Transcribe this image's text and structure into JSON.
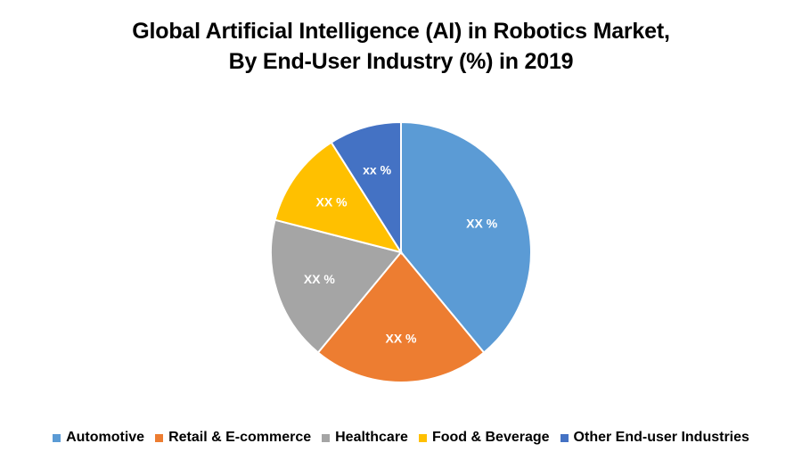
{
  "chart_data": {
    "type": "pie",
    "title_line1": "Global Artificial Intelligence (AI) in Robotics Market,",
    "title_line2": "By End-User Industry (%) in 2019",
    "slices": [
      {
        "name": "Automotive",
        "value": 39,
        "label": "XX %",
        "color": "#5B9BD5"
      },
      {
        "name": "Retail & E-commerce",
        "value": 22,
        "label": "XX %",
        "color": "#ED7D31"
      },
      {
        "name": "Healthcare",
        "value": 18,
        "label": "XX %",
        "color": "#A5A5A5"
      },
      {
        "name": "Food & Beverage",
        "value": 12,
        "label": "XX %",
        "color": "#FFC000"
      },
      {
        "name": "Other End-user Industries",
        "value": 9,
        "label": "xx %",
        "color": "#4472C4"
      }
    ],
    "start_position": "top",
    "direction": "clockwise",
    "legend_position": "bottom"
  }
}
